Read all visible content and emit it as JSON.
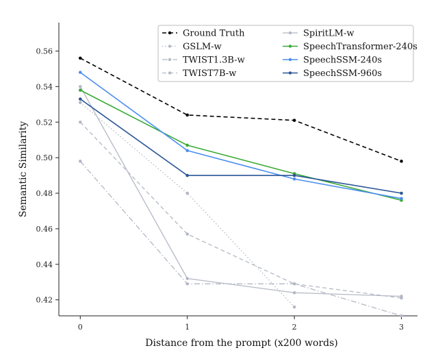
{
  "chart_data": {
    "type": "line",
    "title": "",
    "xlabel": "Distance from the prompt (x200 words)",
    "ylabel": "Semantic Similarity",
    "x": [
      0,
      1,
      2,
      3
    ],
    "xticks": [
      "0",
      "1",
      "2",
      "3"
    ],
    "yticks": [
      "0.42",
      "0.44",
      "0.46",
      "0.48",
      "0.50",
      "0.52",
      "0.54",
      "0.56"
    ],
    "xlim": [
      -0.2,
      3.15
    ],
    "ylim": [
      0.411,
      0.576
    ],
    "grid": false,
    "legend_position": "top-right",
    "series": [
      {
        "name": "Ground Truth",
        "x": [
          0,
          1,
          2,
          3
        ],
        "values": [
          0.556,
          0.524,
          0.521,
          0.498
        ],
        "color": "#000000",
        "dash": "dashed",
        "width": 1.6
      },
      {
        "name": "GSLM-w",
        "x": [
          0,
          1,
          2
        ],
        "values": [
          0.531,
          0.48,
          0.416
        ],
        "color": "#b3b8c4",
        "dash": "dotted",
        "width": 1.3
      },
      {
        "name": "TWIST1.3B-w",
        "x": [
          0,
          1,
          2,
          3
        ],
        "values": [
          0.498,
          0.429,
          0.429,
          0.411
        ],
        "color": "#b3b8c4",
        "dash": "dashdot",
        "width": 1.3
      },
      {
        "name": "TWIST7B-w",
        "x": [
          0,
          1,
          2,
          3
        ],
        "values": [
          0.52,
          0.457,
          0.429,
          0.421
        ],
        "color": "#b3b8c4",
        "dash": "dashed",
        "width": 1.3
      },
      {
        "name": "SpiritLM-w",
        "x": [
          0,
          1,
          2,
          3
        ],
        "values": [
          0.54,
          0.432,
          0.424,
          0.422
        ],
        "color": "#b3b8c4",
        "dash": "solid",
        "width": 1.3
      },
      {
        "name": "SpeechTransformer-240s",
        "x": [
          0,
          1,
          2,
          3
        ],
        "values": [
          0.538,
          0.507,
          0.491,
          0.476
        ],
        "color": "#3aaa35",
        "dash": "solid",
        "width": 1.6
      },
      {
        "name": "SpeechSSM-240s",
        "x": [
          0,
          1,
          2,
          3
        ],
        "values": [
          0.548,
          0.504,
          0.488,
          0.477
        ],
        "color": "#4a8ef0",
        "dash": "solid",
        "width": 1.6
      },
      {
        "name": "SpeechSSM-960s",
        "x": [
          0,
          1,
          2,
          3
        ],
        "values": [
          0.533,
          0.49,
          0.49,
          0.48
        ],
        "color": "#2a5596",
        "dash": "solid",
        "width": 1.6
      }
    ]
  }
}
